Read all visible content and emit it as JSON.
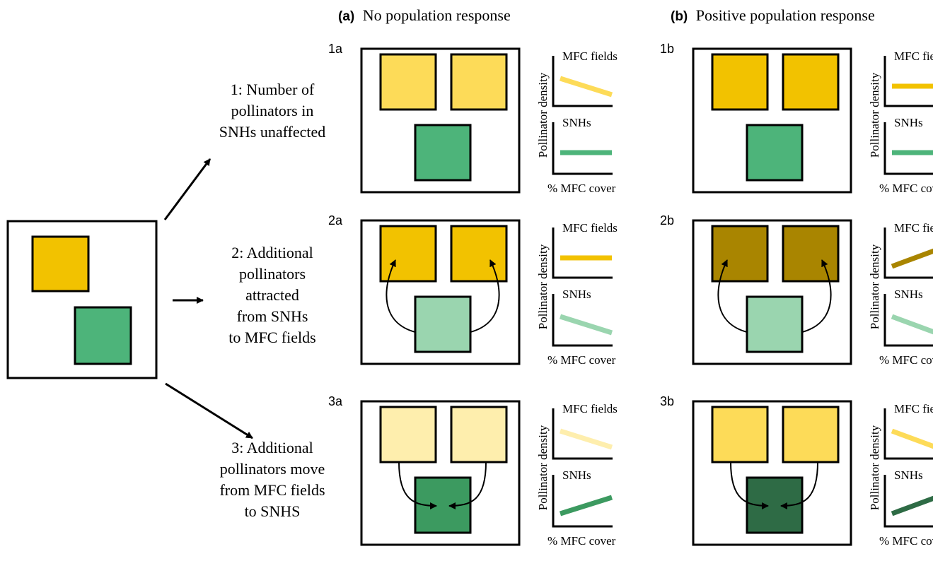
{
  "headers": {
    "a_letter": "(a)",
    "a_text": "No population response",
    "b_letter": "(b)",
    "b_text": "Positive population response"
  },
  "scenarios": [
    {
      "id": "1",
      "lines": [
        "1: Number of",
        "pollinators in",
        "SNHs unaffected"
      ]
    },
    {
      "id": "2",
      "lines": [
        "2: Additional",
        "pollinators",
        "attracted",
        "from SNHs",
        "to MFC fields"
      ]
    },
    {
      "id": "3",
      "lines": [
        "3: Additional",
        "pollinators move",
        "from MFC fields",
        "to SNHS"
      ]
    }
  ],
  "panels": [
    {
      "label": "1a",
      "field_color": "#FDDB58",
      "snh_color": "#4DB47A",
      "arrows": "none",
      "top_graph": {
        "title": "MFC fields",
        "trend": "decrease",
        "color": "#FDDB58"
      },
      "bottom_graph": {
        "title": "SNHs",
        "trend": "flat",
        "color": "#4DB47A"
      }
    },
    {
      "label": "1b",
      "field_color": "#F2C200",
      "snh_color": "#4DB47A",
      "arrows": "none",
      "top_graph": {
        "title": "MFC fields",
        "trend": "flat",
        "color": "#F2C200"
      },
      "bottom_graph": {
        "title": "SNHs",
        "trend": "flat",
        "color": "#4DB47A"
      }
    },
    {
      "label": "2a",
      "field_color": "#F2C200",
      "snh_color": "#9AD5AF",
      "arrows": "out",
      "top_graph": {
        "title": "MFC fields",
        "trend": "flat",
        "color": "#F2C200"
      },
      "bottom_graph": {
        "title": "SNHs",
        "trend": "decrease",
        "color": "#9AD5AF"
      }
    },
    {
      "label": "2b",
      "field_color": "#A98500",
      "snh_color": "#9AD5AF",
      "arrows": "out",
      "top_graph": {
        "title": "MFC fields",
        "trend": "increase",
        "color": "#A98500"
      },
      "bottom_graph": {
        "title": "SNHs",
        "trend": "decrease",
        "color": "#9AD5AF"
      }
    },
    {
      "label": "3a",
      "field_color": "#FEEEAD",
      "snh_color": "#3C9A60",
      "arrows": "in",
      "top_graph": {
        "title": "MFC fields",
        "trend": "decrease",
        "color": "#FEEEAD"
      },
      "bottom_graph": {
        "title": "SNHs",
        "trend": "increase",
        "color": "#3C9A60"
      }
    },
    {
      "label": "3b",
      "field_color": "#FDDB58",
      "snh_color": "#2E6B45",
      "arrows": "in",
      "top_graph": {
        "title": "MFC fields",
        "trend": "decrease",
        "color": "#FDDB58"
      },
      "bottom_graph": {
        "title": "SNHs",
        "trend": "increase",
        "color": "#2E6B45"
      }
    }
  ],
  "graph_labels": {
    "y_axis": "Pollinator density",
    "x_axis": "% MFC cover"
  },
  "start_landscape": {
    "field_color": "#F2C200",
    "snh_color": "#4DB47A"
  }
}
